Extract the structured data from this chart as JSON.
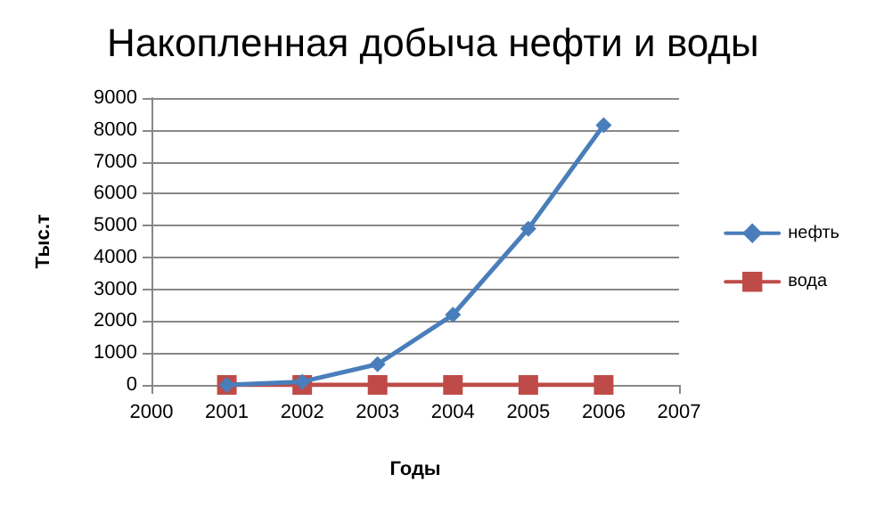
{
  "chart_data": {
    "type": "line",
    "title": "Накопленная добыча нефти и воды",
    "xlabel": "Годы",
    "ylabel": "Тыс.т",
    "x": [
      2001,
      2002,
      2003,
      2004,
      2005,
      2006
    ],
    "series": [
      {
        "name": "нефть",
        "color": "#4a7ebb",
        "marker": "diamond",
        "values": [
          0,
          100,
          650,
          2200,
          4900,
          8150
        ]
      },
      {
        "name": "вода",
        "color": "#be4b48",
        "marker": "square",
        "values": [
          0,
          0,
          0,
          0,
          0,
          0
        ]
      }
    ],
    "xlim": [
      2000,
      2007
    ],
    "xticks": [
      2000,
      2001,
      2002,
      2003,
      2004,
      2005,
      2006,
      2007
    ],
    "ylim": [
      0,
      9000
    ],
    "yticks": [
      0,
      1000,
      2000,
      3000,
      4000,
      5000,
      6000,
      7000,
      8000,
      9000
    ],
    "grid": "y",
    "legend": "right",
    "line_style": "solid"
  }
}
